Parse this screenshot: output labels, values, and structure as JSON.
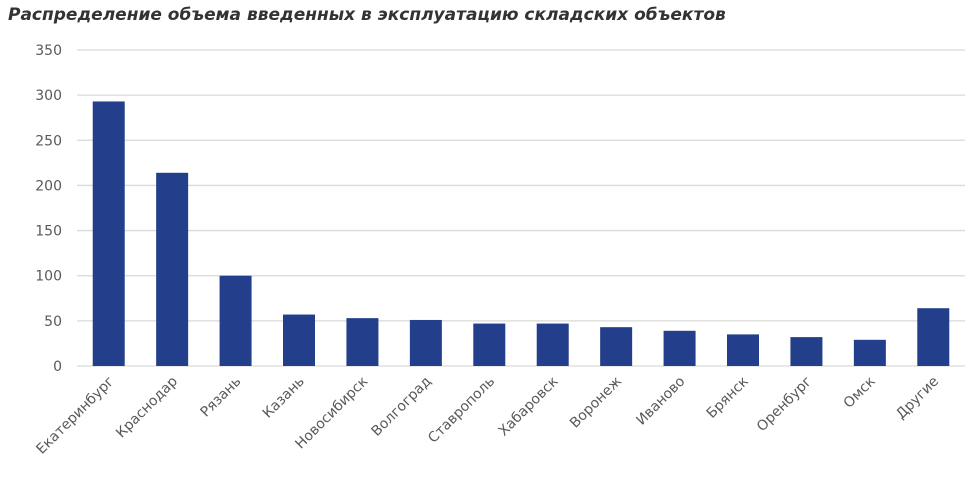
{
  "chart_data": {
    "type": "bar",
    "title": "Распределение объема введенных в эксплуатацию складских объектов",
    "xlabel": "",
    "ylabel": "",
    "categories": [
      "Екатеринбург",
      "Краснодар",
      "Рязань",
      "Казань",
      "Новосибирск",
      "Волгоград",
      "Ставрополь",
      "Хабаровск",
      "Воронеж",
      "Иваново",
      "Брянск",
      "Оренбург",
      "Омск",
      "Другие"
    ],
    "values": [
      293,
      214,
      100,
      57,
      53,
      51,
      47,
      47,
      43,
      39,
      35,
      32,
      29,
      64
    ],
    "ylim": [
      0,
      350
    ],
    "yticks": [
      0,
      50,
      100,
      150,
      200,
      250,
      300,
      350
    ],
    "grid": true,
    "legend": "none",
    "bar_color": "#233f8b",
    "gridline_color": "#d9d9d9"
  }
}
